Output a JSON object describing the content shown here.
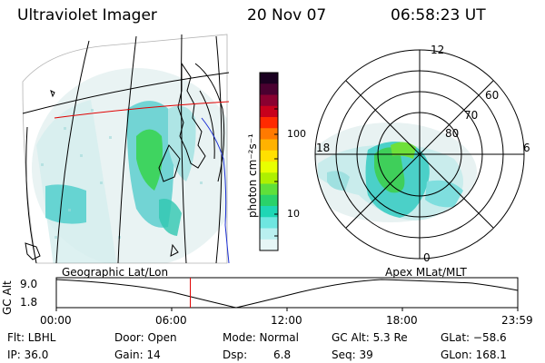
{
  "header": {
    "instrument": "Ultraviolet Imager",
    "date": "20 Nov 07",
    "time": "06:58:23 UT"
  },
  "colorbar": {
    "label": "photon cm⁻²s⁻¹",
    "tick_100": "100",
    "tick_10": "10",
    "colors": [
      "#1a0020",
      "#4a0030",
      "#8a0030",
      "#c8001c",
      "#ff2a00",
      "#ff7a00",
      "#ffb200",
      "#ffe000",
      "#e8ff00",
      "#aef000",
      "#5fe03a",
      "#2ad26a",
      "#1fd6b5",
      "#6fe6e0",
      "#b9f0f0",
      "#e6f6f6"
    ]
  },
  "polar": {
    "mlt_labels": {
      "top": "12",
      "left": "18",
      "right": "6",
      "bottom": "0"
    },
    "lat_labels": [
      "60",
      "70",
      "80"
    ]
  },
  "timeline": {
    "left_title": "Geographic Lat/Lon",
    "right_title": "Apex  MLat/MLT",
    "axis_label": "GC Alt",
    "y_top": "9.0",
    "y_bottom": "1.8",
    "x_ticks": [
      "00:00",
      "06:00",
      "12:00",
      "18:00",
      "23:59"
    ],
    "marker_hour": 6.97
  },
  "status": {
    "flt": "Flt: LBHL",
    "ip": "IP: 36.0",
    "door": "Door: Open",
    "gain": "Gain: 14",
    "mode": "Mode: Normal",
    "dsp_label": "Dsp:",
    "dsp_value": "6.8",
    "gcalt": "GC Alt: 5.3 Re",
    "seq": "Seq: 39",
    "glat": "GLat: −58.6",
    "glon": "GLon: 168.1"
  }
}
